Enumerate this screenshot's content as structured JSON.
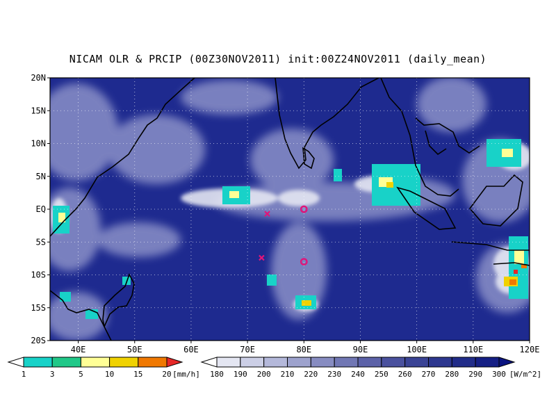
{
  "title": "NICAM OLR & PRCIP (00Z30NOV2011) init:00Z24NOV2011 (daily_mean)",
  "map": {
    "lon_range": [
      35,
      120
    ],
    "lat_range": [
      -20,
      20
    ],
    "lon_ticks": [
      "40E",
      "50E",
      "60E",
      "70E",
      "80E",
      "90E",
      "100E",
      "110E",
      "120E"
    ],
    "lon_tick_values": [
      40,
      50,
      60,
      70,
      80,
      90,
      100,
      110,
      120
    ],
    "lat_ticks": [
      "20N",
      "15N",
      "10N",
      "5N",
      "EQ",
      "5S",
      "10S",
      "15S",
      "20S"
    ],
    "lat_tick_values": [
      20,
      15,
      10,
      5,
      0,
      -5,
      -10,
      -15,
      -20
    ],
    "gridlines": "dotted",
    "colors": {
      "olr_background": "#1e2a8f",
      "coast": "#000000",
      "marker": "#e0157a"
    }
  },
  "markers": [
    {
      "name": "x-mark",
      "symbol": "x",
      "lon": 73.5,
      "lat": -0.7
    },
    {
      "name": "x-mark",
      "symbol": "x",
      "lon": 72.5,
      "lat": -7.4
    },
    {
      "name": "circle-mark",
      "symbol": "o",
      "lon": 80.0,
      "lat": 0.0
    },
    {
      "name": "circle-mark",
      "symbol": "o",
      "lon": 80.0,
      "lat": -8.0
    }
  ],
  "precip_colorbar": {
    "levels": [
      "1",
      "3",
      "5",
      "10",
      "15",
      "20"
    ],
    "unit": "[mm/h]",
    "colors": [
      "#ffffff",
      "#18d2c8",
      "#20c888",
      "#ffff96",
      "#f0d200",
      "#f07800",
      "#e62828"
    ]
  },
  "olr_colorbar": {
    "levels": [
      "180",
      "190",
      "200",
      "210",
      "220",
      "230",
      "240",
      "250",
      "260",
      "270",
      "280",
      "290",
      "300"
    ],
    "unit": "[W/m^2]",
    "colors": [
      "#ffffff",
      "#e4e6f2",
      "#cccfe6",
      "#b4b8da",
      "#9da2cd",
      "#878cc1",
      "#7177b4",
      "#5c62a8",
      "#4a519e",
      "#3a4395",
      "#2d378f",
      "#212c89",
      "#151f84",
      "#0a1480"
    ]
  }
}
